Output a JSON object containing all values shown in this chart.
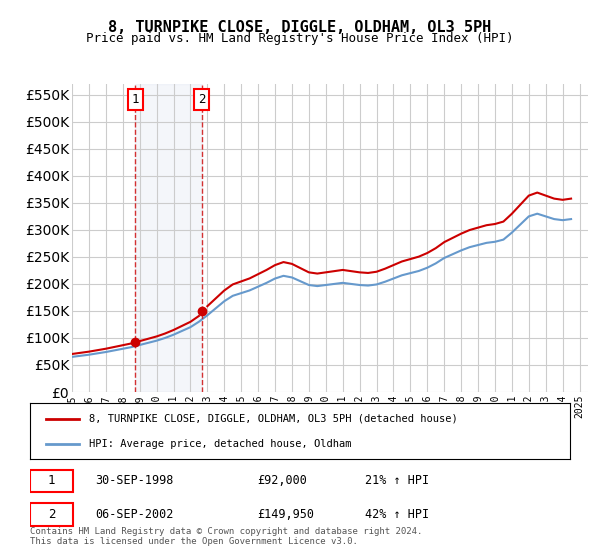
{
  "title": "8, TURNPIKE CLOSE, DIGGLE, OLDHAM, OL3 5PH",
  "subtitle": "Price paid vs. HM Land Registry's House Price Index (HPI)",
  "ylabel": "",
  "ylim": [
    0,
    570000
  ],
  "yticks": [
    0,
    50000,
    100000,
    150000,
    200000,
    250000,
    300000,
    350000,
    400000,
    450000,
    500000,
    550000
  ],
  "ytick_labels": [
    "£0",
    "£50K",
    "£100K",
    "£150K",
    "£200K",
    "£250K",
    "£300K",
    "£350K",
    "£400K",
    "£450K",
    "£500K",
    "£550K"
  ],
  "hpi_color": "#6699cc",
  "price_color": "#cc0000",
  "transaction1": {
    "date_num": 1998.75,
    "price": 92000,
    "label": "1",
    "date_str": "30-SEP-1998",
    "price_str": "£92,000",
    "hpi_str": "21% ↑ HPI"
  },
  "transaction2": {
    "date_num": 2002.67,
    "price": 149950,
    "label": "2",
    "date_str": "06-SEP-2002",
    "price_str": "£149,950",
    "hpi_str": "42% ↑ HPI"
  },
  "legend_line1": "8, TURNPIKE CLOSE, DIGGLE, OLDHAM, OL3 5PH (detached house)",
  "legend_line2": "HPI: Average price, detached house, Oldham",
  "footer": "Contains HM Land Registry data © Crown copyright and database right 2024.\nThis data is licensed under the Open Government Licence v3.0.",
  "background_color": "#ffffff",
  "grid_color": "#cccccc"
}
